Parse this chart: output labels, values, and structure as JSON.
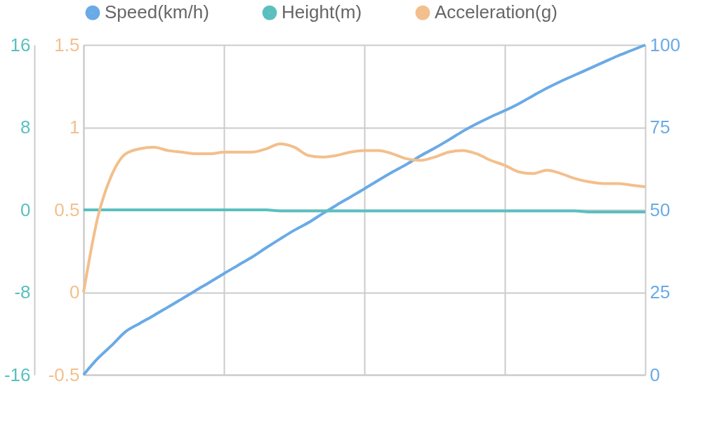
{
  "chart_data": {
    "type": "line",
    "categories": [
      null,
      null,
      null,
      null,
      null,
      null,
      null,
      null,
      null,
      null,
      null,
      null,
      null,
      null,
      null,
      null,
      null,
      null,
      null,
      null,
      null,
      null,
      null,
      null,
      null,
      null,
      null,
      null,
      null,
      null,
      null,
      null,
      null,
      null,
      null,
      null,
      null,
      null,
      null,
      null,
      null
    ],
    "series": [
      {
        "name": "Speed(km/h)",
        "color": "#6aaae6",
        "axis": "y2",
        "values": [
          0,
          4.9,
          8.9,
          13.1,
          15.6,
          18,
          20.5,
          23,
          25.6,
          28.1,
          30.7,
          33.2,
          35.7,
          38.5,
          41.2,
          43.8,
          46.1,
          48.8,
          51.4,
          53.9,
          56.4,
          59,
          61.5,
          63.8,
          66.4,
          68.7,
          71.2,
          73.8,
          76.1,
          78.2,
          80.1,
          82.2,
          84.6,
          86.9,
          89,
          90.9,
          92.8,
          94.7,
          96.6,
          98.3,
          100
        ]
      },
      {
        "name": "Height(m)",
        "color": "#5bbfbf",
        "axis": "y3",
        "values": [
          0,
          0,
          0,
          0,
          0,
          0,
          0,
          0,
          0,
          0,
          0,
          0,
          0,
          0,
          -0.1,
          -0.1,
          -0.1,
          -0.1,
          -0.1,
          -0.1,
          -0.1,
          -0.1,
          -0.1,
          -0.1,
          -0.1,
          -0.1,
          -0.1,
          -0.1,
          -0.1,
          -0.1,
          -0.1,
          -0.1,
          -0.1,
          -0.1,
          -0.1,
          -0.1,
          -0.2,
          -0.2,
          -0.2,
          -0.2,
          -0.2
        ]
      },
      {
        "name": "Acceleration(g)",
        "color": "#f3bf8c",
        "values": [
          0,
          0.45,
          0.71,
          0.84,
          0.87,
          0.88,
          0.86,
          0.85,
          0.84,
          0.84,
          0.85,
          0.85,
          0.85,
          0.87,
          0.9,
          0.88,
          0.83,
          0.82,
          0.83,
          0.85,
          0.86,
          0.86,
          0.84,
          0.81,
          0.8,
          0.82,
          0.85,
          0.86,
          0.84,
          0.8,
          0.77,
          0.73,
          0.72,
          0.74,
          0.72,
          0.69,
          0.67,
          0.66,
          0.66,
          0.65,
          0.64
        ]
      }
    ],
    "ylim": [
      -0.5,
      1.5
    ],
    "yticks": [
      -0.5,
      0,
      0.5,
      1,
      1.5
    ],
    "y2lim": [
      0,
      100
    ],
    "y2ticks": [
      0,
      25,
      50,
      75,
      100
    ],
    "y3lim": [
      -16,
      16
    ],
    "y3ticks": [
      -16,
      -8,
      0,
      8,
      16
    ],
    "grid": true,
    "legend": "top",
    "tick_labels": "y"
  }
}
